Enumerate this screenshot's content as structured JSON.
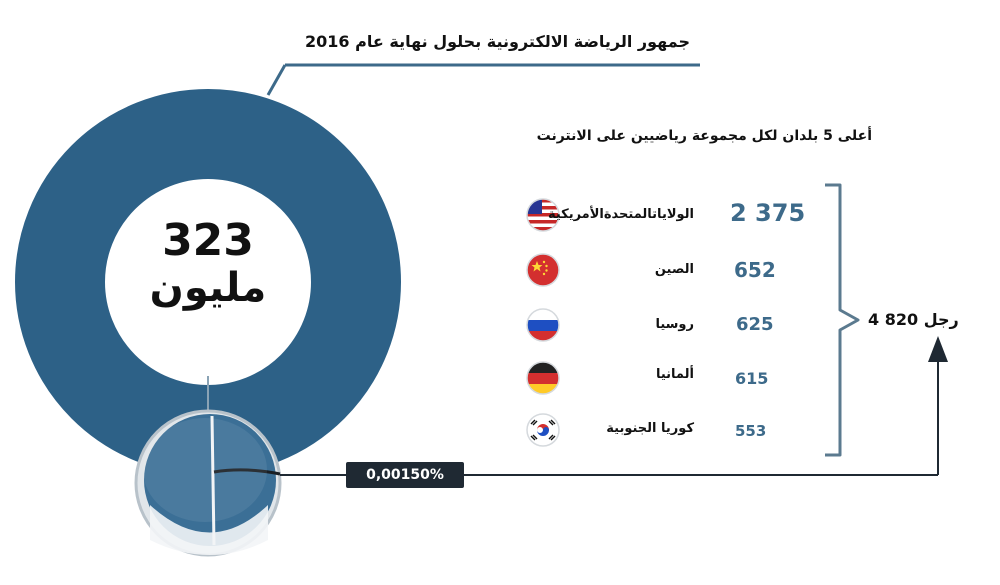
{
  "header": {
    "title": "جمهور الرياضة الالكترونية بحلول نهاية عام 2016"
  },
  "donut": {
    "value": "323",
    "unit": "مليون",
    "percent": "0,00150%",
    "ring_color": "#2d6187"
  },
  "top_countries": {
    "subtitle": "أعلى 5 بلدان لكل مجموعة رياضيين على الانترنت",
    "total": "رجل 820 4",
    "items": [
      {
        "name": "الولاياتالمتحدةالأمريكية",
        "value": "2 375",
        "flag": "usa-flag-icon"
      },
      {
        "name": "الصين",
        "value": "652",
        "flag": "china-flag-icon"
      },
      {
        "name": "روسيا",
        "value": "625",
        "flag": "russia-flag-icon"
      },
      {
        "name": "ألمانيا",
        "value": "615",
        "flag": "germany-flag-icon"
      },
      {
        "name": "كوريا الجنوبية",
        "value": "553",
        "flag": "south-korea-flag-icon"
      }
    ]
  },
  "colors": {
    "accent": "#2d6187",
    "value_text": "#3d6a8a",
    "bracket": "#5b7a8f",
    "line": "#1f2933"
  }
}
